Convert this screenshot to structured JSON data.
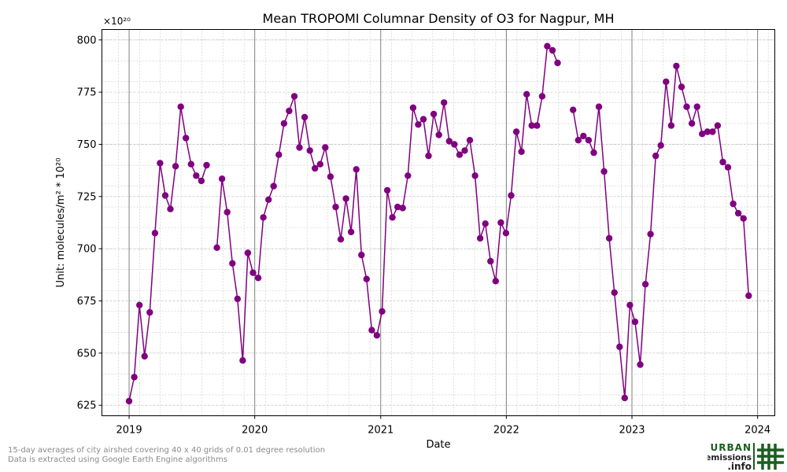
{
  "footnotes": {
    "line1": "15-day averages of city airshed covering 40 x 40 grids of 0.01 degree resolution",
    "line2": "Data is extracted using Google Earth Engine algorithms"
  },
  "logo": {
    "word1": "URBAN",
    "word2": "emissions",
    "word3": ".info",
    "brand_color": "#1b5e20"
  },
  "chart_data": {
    "type": "line",
    "title": "Mean TROPOMI Columnar Density of O3 for Nagpur, MH",
    "xlabel": "Date",
    "ylabel": "Unit: molecules/m² * 10²⁰",
    "y_multiplier": "×10²⁰",
    "ylim": [
      620,
      805
    ],
    "xlim": [
      "2018-10-14",
      "2024-02-20"
    ],
    "x_ticks": [
      "2019-01-01",
      "2020-01-01",
      "2021-01-01",
      "2022-01-01",
      "2023-01-01",
      "2024-01-01"
    ],
    "x_tick_labels": [
      "2019",
      "2020",
      "2021",
      "2022",
      "2023",
      "2024"
    ],
    "y_ticks": [
      625,
      650,
      675,
      700,
      725,
      750,
      775,
      800
    ],
    "grid": true,
    "line_color": "#800080",
    "series": [
      {
        "points": [
          [
            "2019-01-01",
            627
          ],
          [
            "2019-01-16",
            638.5
          ],
          [
            "2019-01-31",
            673
          ],
          [
            "2019-02-15",
            648.5
          ],
          [
            "2019-03-02",
            669.5
          ],
          [
            "2019-03-17",
            707.5
          ],
          [
            "2019-04-01",
            741
          ],
          [
            "2019-04-16",
            725.5
          ],
          [
            "2019-05-01",
            719
          ],
          [
            "2019-05-16",
            739.5
          ],
          [
            "2019-05-31",
            768
          ],
          [
            "2019-06-15",
            753
          ],
          [
            "2019-06-30",
            740.5
          ],
          [
            "2019-07-15",
            735
          ],
          [
            "2019-07-30",
            732.5
          ],
          [
            "2019-08-14",
            740
          ],
          [
            "2019-09-13",
            700.5
          ],
          [
            "2019-09-28",
            733.5
          ],
          [
            "2019-10-13",
            717.5
          ],
          [
            "2019-10-28",
            693
          ],
          [
            "2019-11-12",
            676
          ],
          [
            "2019-11-27",
            646.5
          ],
          [
            "2019-12-12",
            698
          ],
          [
            "2019-12-27",
            688.5
          ],
          [
            "2020-01-11",
            686
          ],
          [
            "2020-01-26",
            715
          ],
          [
            "2020-02-10",
            723.5
          ],
          [
            "2020-02-25",
            730
          ],
          [
            "2020-03-11",
            745
          ],
          [
            "2020-03-26",
            760
          ],
          [
            "2020-04-10",
            766
          ],
          [
            "2020-04-25",
            773
          ],
          [
            "2020-05-10",
            748.5
          ],
          [
            "2020-05-25",
            763
          ],
          [
            "2020-06-09",
            747
          ],
          [
            "2020-06-24",
            738.5
          ],
          [
            "2020-07-09",
            740.5
          ],
          [
            "2020-07-24",
            748.5
          ],
          [
            "2020-08-08",
            734.5
          ],
          [
            "2020-08-23",
            720
          ],
          [
            "2020-09-07",
            704.5
          ],
          [
            "2020-09-22",
            724
          ],
          [
            "2020-10-07",
            708
          ],
          [
            "2020-10-22",
            738
          ],
          [
            "2020-11-06",
            697
          ],
          [
            "2020-11-21",
            685.5
          ],
          [
            "2020-12-06",
            661
          ],
          [
            "2020-12-21",
            658.5
          ],
          [
            "2021-01-05",
            670
          ],
          [
            "2021-01-20",
            728
          ],
          [
            "2021-02-04",
            715
          ],
          [
            "2021-02-19",
            720
          ],
          [
            "2021-03-06",
            719.5
          ],
          [
            "2021-03-21",
            735
          ],
          [
            "2021-04-05",
            767.5
          ],
          [
            "2021-04-20",
            759.5
          ],
          [
            "2021-05-05",
            762
          ],
          [
            "2021-05-20",
            744.5
          ],
          [
            "2021-06-04",
            764.5
          ],
          [
            "2021-06-19",
            754.5
          ],
          [
            "2021-07-04",
            770
          ],
          [
            "2021-07-19",
            751.5
          ],
          [
            "2021-08-03",
            750
          ],
          [
            "2021-08-18",
            745
          ],
          [
            "2021-09-02",
            747
          ],
          [
            "2021-09-17",
            752
          ],
          [
            "2021-10-02",
            735
          ],
          [
            "2021-10-17",
            705
          ],
          [
            "2021-11-01",
            712
          ],
          [
            "2021-11-16",
            694
          ],
          [
            "2021-12-01",
            684.5
          ],
          [
            "2021-12-16",
            712.5
          ],
          [
            "2021-12-31",
            707.5
          ],
          [
            "2022-01-15",
            725.5
          ],
          [
            "2022-01-30",
            756
          ],
          [
            "2022-02-14",
            746.5
          ],
          [
            "2022-03-01",
            774
          ],
          [
            "2022-03-16",
            759
          ],
          [
            "2022-03-31",
            759
          ],
          [
            "2022-04-15",
            773
          ],
          [
            "2022-04-30",
            797
          ],
          [
            "2022-05-15",
            795
          ],
          [
            "2022-05-30",
            789
          ],
          [
            "2022-07-14",
            766.5
          ],
          [
            "2022-07-29",
            752
          ],
          [
            "2022-08-13",
            754
          ],
          [
            "2022-08-28",
            752
          ],
          [
            "2022-09-12",
            746
          ],
          [
            "2022-09-27",
            768
          ],
          [
            "2022-10-12",
            737
          ],
          [
            "2022-10-27",
            705
          ],
          [
            "2022-11-11",
            679
          ],
          [
            "2022-11-26",
            653
          ],
          [
            "2022-12-11",
            628.5
          ],
          [
            "2022-12-26",
            673
          ],
          [
            "2023-01-10",
            665
          ],
          [
            "2023-01-25",
            644.5
          ],
          [
            "2023-02-09",
            683
          ],
          [
            "2023-02-24",
            707
          ],
          [
            "2023-03-11",
            744.5
          ],
          [
            "2023-03-26",
            749.5
          ],
          [
            "2023-04-10",
            780
          ],
          [
            "2023-04-25",
            759
          ],
          [
            "2023-05-10",
            787.5
          ],
          [
            "2023-05-25",
            777.5
          ],
          [
            "2023-06-09",
            768
          ],
          [
            "2023-06-24",
            760
          ],
          [
            "2023-07-09",
            768
          ],
          [
            "2023-07-24",
            755
          ],
          [
            "2023-08-08",
            756
          ],
          [
            "2023-08-23",
            756
          ],
          [
            "2023-09-07",
            759
          ],
          [
            "2023-09-22",
            741.5
          ],
          [
            "2023-10-07",
            739
          ],
          [
            "2023-10-22",
            721.5
          ],
          [
            "2023-11-06",
            717
          ],
          [
            "2023-11-21",
            714.5
          ],
          [
            "2023-12-06",
            677.5
          ]
        ]
      }
    ]
  }
}
